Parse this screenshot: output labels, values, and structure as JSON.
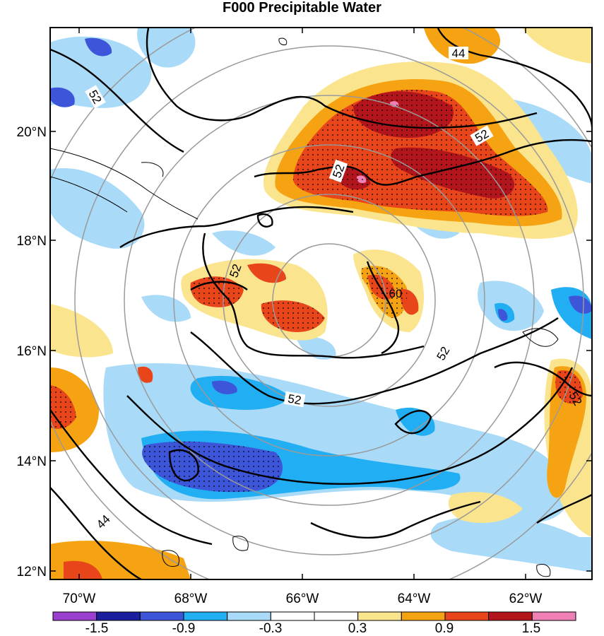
{
  "title": "F000 Precipitable Water",
  "lat_labels": [
    "20°N",
    "18°N",
    "16°N",
    "14°N",
    "12°N"
  ],
  "lon_labels": [
    "70°W",
    "68°W",
    "66°W",
    "64°W",
    "62°W"
  ],
  "colorbar": {
    "colors": [
      "#9a3fd0",
      "#1b1f9e",
      "#3d55d8",
      "#22aef2",
      "#a9dbf8",
      "#ffffff",
      "#ffffff",
      "#fbe48e",
      "#f5a312",
      "#e8461a",
      "#b2161c",
      "#ef80b6"
    ],
    "labels": [
      "-1.5",
      "-0.9",
      "-0.3",
      "0.3",
      "0.9",
      "1.5"
    ]
  },
  "contour_labels": [
    "44",
    "52",
    "52",
    "52",
    "52",
    "60",
    "52",
    "52",
    "52",
    "44"
  ],
  "colors": {
    "frame": "#000000",
    "range_rings": "#9a9a9a",
    "contour": "#000000"
  }
}
